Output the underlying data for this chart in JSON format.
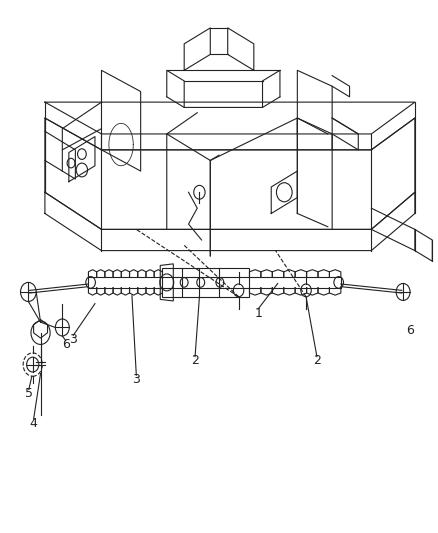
{
  "background_color": "#ffffff",
  "line_color": "#222222",
  "figsize": [
    4.38,
    5.33
  ],
  "dpi": 100,
  "font_size": 9,
  "line_width": 0.8
}
